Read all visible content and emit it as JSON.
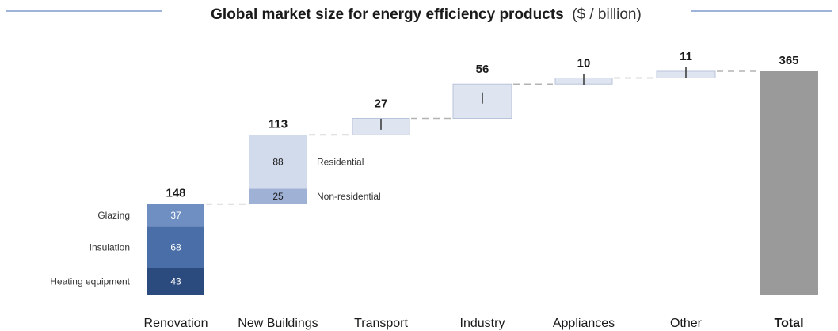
{
  "chart_data": {
    "type": "waterfall",
    "title": "Global market size for energy efficiency products",
    "title_unit": "($ / billion)",
    "unit": "$ billion",
    "bars": [
      {
        "category": "Renovation",
        "total": 148,
        "segments": [
          {
            "name": "Heating equipment",
            "value": 43,
            "label_side": "left",
            "color": "#2b4a7e",
            "label_color": "#ffffff"
          },
          {
            "name": "Insulation",
            "value": 68,
            "label_side": "left",
            "color": "#4a6fa8",
            "label_color": "#ffffff"
          },
          {
            "name": "Glazing",
            "value": 37,
            "label_side": "left",
            "color": "#6f8fc2",
            "label_color": "#ffffff"
          }
        ]
      },
      {
        "category": "New Buildings",
        "total": 113,
        "segments": [
          {
            "name": "Non-residential",
            "value": 25,
            "label_side": "right",
            "color": "#9fb2d6",
            "label_color": "#1a1a1a"
          },
          {
            "name": "Residential",
            "value": 88,
            "label_side": "right",
            "color": "#d2dbec",
            "label_color": "#1a1a1a"
          }
        ]
      },
      {
        "category": "Transport",
        "total": 27,
        "segments": [
          {
            "value": 27,
            "color": "#dfe5f0"
          }
        ]
      },
      {
        "category": "Industry",
        "total": 56,
        "segments": [
          {
            "value": 56,
            "color": "#dfe5f0"
          }
        ]
      },
      {
        "category": "Appliances",
        "total": 10,
        "segments": [
          {
            "value": 10,
            "color": "#dfe5f0"
          }
        ]
      },
      {
        "category": "Other",
        "total": 11,
        "segments": [
          {
            "value": 11,
            "color": "#dfe5f0"
          }
        ]
      },
      {
        "category": "Total",
        "total": 365,
        "is_total": true,
        "segments": [
          {
            "value": 365,
            "color": "#9a9a9a"
          }
        ]
      }
    ],
    "y_range": [
      0,
      365
    ],
    "gridlines": false,
    "connector_lines": true,
    "colors": {
      "title_rule": "#9fb4d8",
      "connector": "#b3b3b3",
      "increment_border": "#b8c4da",
      "marker": "#333333"
    }
  }
}
